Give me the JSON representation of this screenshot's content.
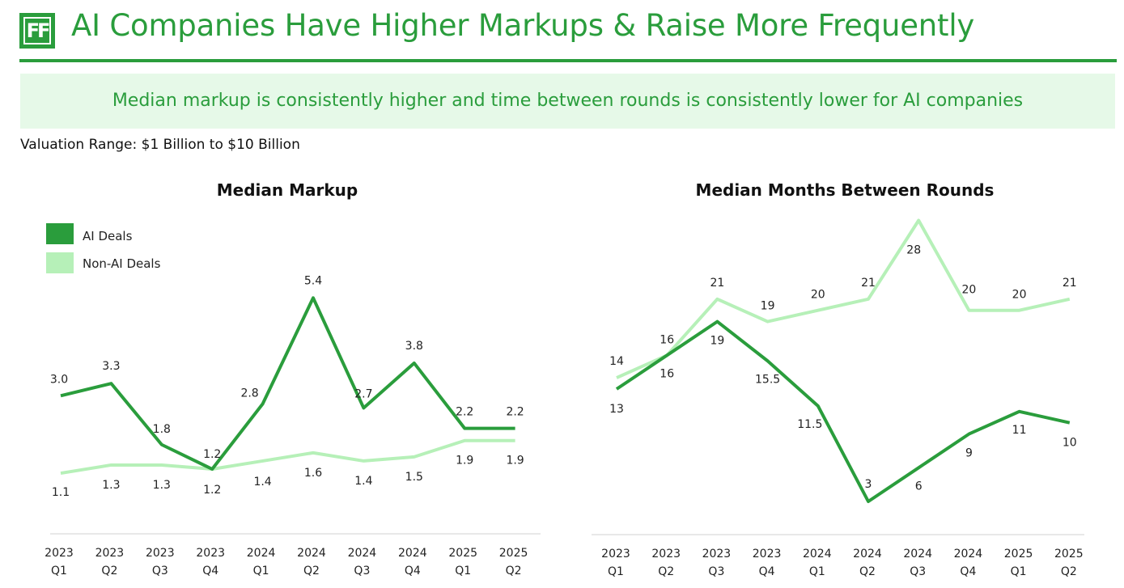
{
  "header": {
    "logo_text": "FF",
    "title": "AI Companies Have Higher Markups & Raise More Frequently"
  },
  "banner": {
    "text": "Median markup is consistently higher and time between rounds is consistently lower for AI companies"
  },
  "subtitle": "Valuation Range: $1 Billion to $10 Billion",
  "colors": {
    "ai": "#2a9d3c",
    "non_ai": "#b6f0b8",
    "brand": "#2a9d3c",
    "banner_bg": "#e6f9e8"
  },
  "chart_data": [
    {
      "type": "line",
      "title": "Median Markup",
      "categories": [
        [
          "2023",
          "Q1"
        ],
        [
          "2023",
          "Q2"
        ],
        [
          "2023",
          "Q3"
        ],
        [
          "2023",
          "Q4"
        ],
        [
          "2024",
          "Q1"
        ],
        [
          "2024",
          "Q2"
        ],
        [
          "2024",
          "Q3"
        ],
        [
          "2024",
          "Q4"
        ],
        [
          "2025",
          "Q1"
        ],
        [
          "2025",
          "Q2"
        ]
      ],
      "series": [
        {
          "name": "AI Deals",
          "values": [
            3.0,
            3.3,
            1.8,
            1.2,
            2.8,
            5.4,
            2.7,
            3.8,
            2.2,
            2.2
          ],
          "labels": [
            "3.0",
            "3.3",
            "1.8",
            "1.2",
            "2.8",
            "5.4",
            "2.7",
            "3.8",
            "2.2",
            "2.2"
          ]
        },
        {
          "name": "Non-AI Deals",
          "values": [
            1.1,
            1.3,
            1.3,
            1.2,
            1.4,
            1.6,
            1.4,
            1.5,
            1.9,
            1.9
          ],
          "labels": [
            "1.1",
            "1.3",
            "1.3",
            "1.2",
            "1.4",
            "1.6",
            "1.4",
            "1.5",
            "1.9",
            "1.9"
          ]
        }
      ],
      "legend": "top-left",
      "grid": false
    },
    {
      "type": "line",
      "title": "Median Months Between Rounds",
      "categories": [
        [
          "2023",
          "Q1"
        ],
        [
          "2023",
          "Q2"
        ],
        [
          "2023",
          "Q3"
        ],
        [
          "2023",
          "Q4"
        ],
        [
          "2024",
          "Q1"
        ],
        [
          "2024",
          "Q2"
        ],
        [
          "2024",
          "Q3"
        ],
        [
          "2024",
          "Q4"
        ],
        [
          "2025",
          "Q1"
        ],
        [
          "2025",
          "Q2"
        ]
      ],
      "series": [
        {
          "name": "AI Deals",
          "values": [
            13,
            16,
            19,
            15.5,
            11.5,
            3,
            6,
            9,
            11,
            10
          ],
          "labels": [
            "13",
            "16",
            "19",
            "15.5",
            "11.5",
            "3",
            "6",
            "9",
            "11",
            "10"
          ]
        },
        {
          "name": "Non-AI Deals",
          "values": [
            14,
            16,
            21,
            19,
            20,
            21,
            28,
            20,
            20,
            21
          ],
          "labels": [
            "14",
            "16",
            "21",
            "19",
            "20",
            "21",
            "28",
            "20",
            "20",
            "21"
          ]
        }
      ],
      "grid": false
    }
  ]
}
